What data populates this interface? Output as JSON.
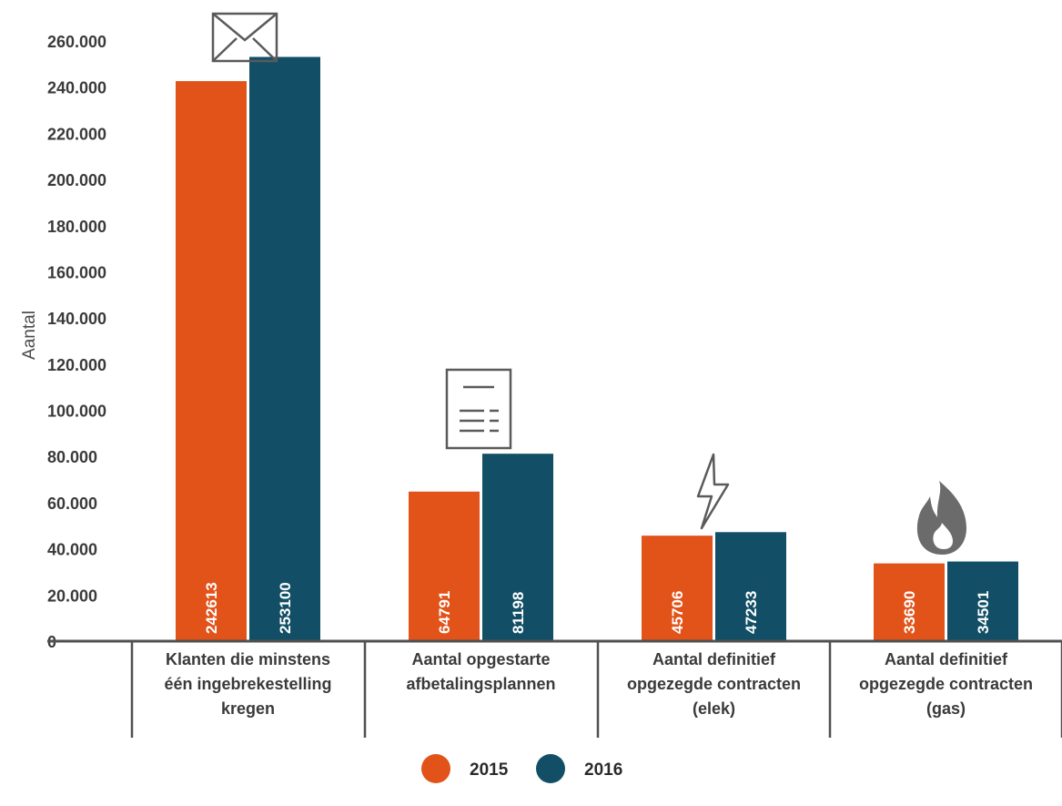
{
  "chart_data": {
    "type": "bar",
    "ylabel": "Aantal",
    "ylim": [
      0,
      260000
    ],
    "ytick_values": [
      0,
      20000,
      40000,
      60000,
      80000,
      100000,
      120000,
      140000,
      160000,
      180000,
      200000,
      220000,
      240000,
      260000
    ],
    "ytick_labels": [
      "0",
      "20.000",
      "40.000",
      "60.000",
      "80.000",
      "100.000",
      "120.000",
      "140.000",
      "160.000",
      "180.000",
      "200.000",
      "220.000",
      "240.000",
      "260.000"
    ],
    "categories": [
      "Klanten die minstens één ingebrekestelling kregen",
      "Aantal opgestarte afbetalingsplannen",
      "Aantal definitief opgezegde contracten (elek)",
      "Aantal definitief opgezegde contracten (gas)"
    ],
    "category_label_lines": [
      [
        "Klanten die minstens",
        "één ingebrekestelling",
        "kregen"
      ],
      [
        "Aantal opgestarte",
        "afbetalingsplannen"
      ],
      [
        "Aantal definitief",
        "opgezegde contracten",
        "(elek)"
      ],
      [
        "Aantal definitief",
        "opgezegde contracten",
        "(gas)"
      ]
    ],
    "category_icons": [
      "envelope-icon",
      "document-icon",
      "lightning-icon",
      "flame-icon"
    ],
    "series": [
      {
        "name": "2015",
        "color": "#e2531a",
        "values": [
          242613,
          64791,
          45706,
          33690
        ]
      },
      {
        "name": "2016",
        "color": "#124f66",
        "values": [
          253100,
          81198,
          47233,
          34501
        ]
      }
    ],
    "legend_position": "bottom-center",
    "grid": false
  }
}
